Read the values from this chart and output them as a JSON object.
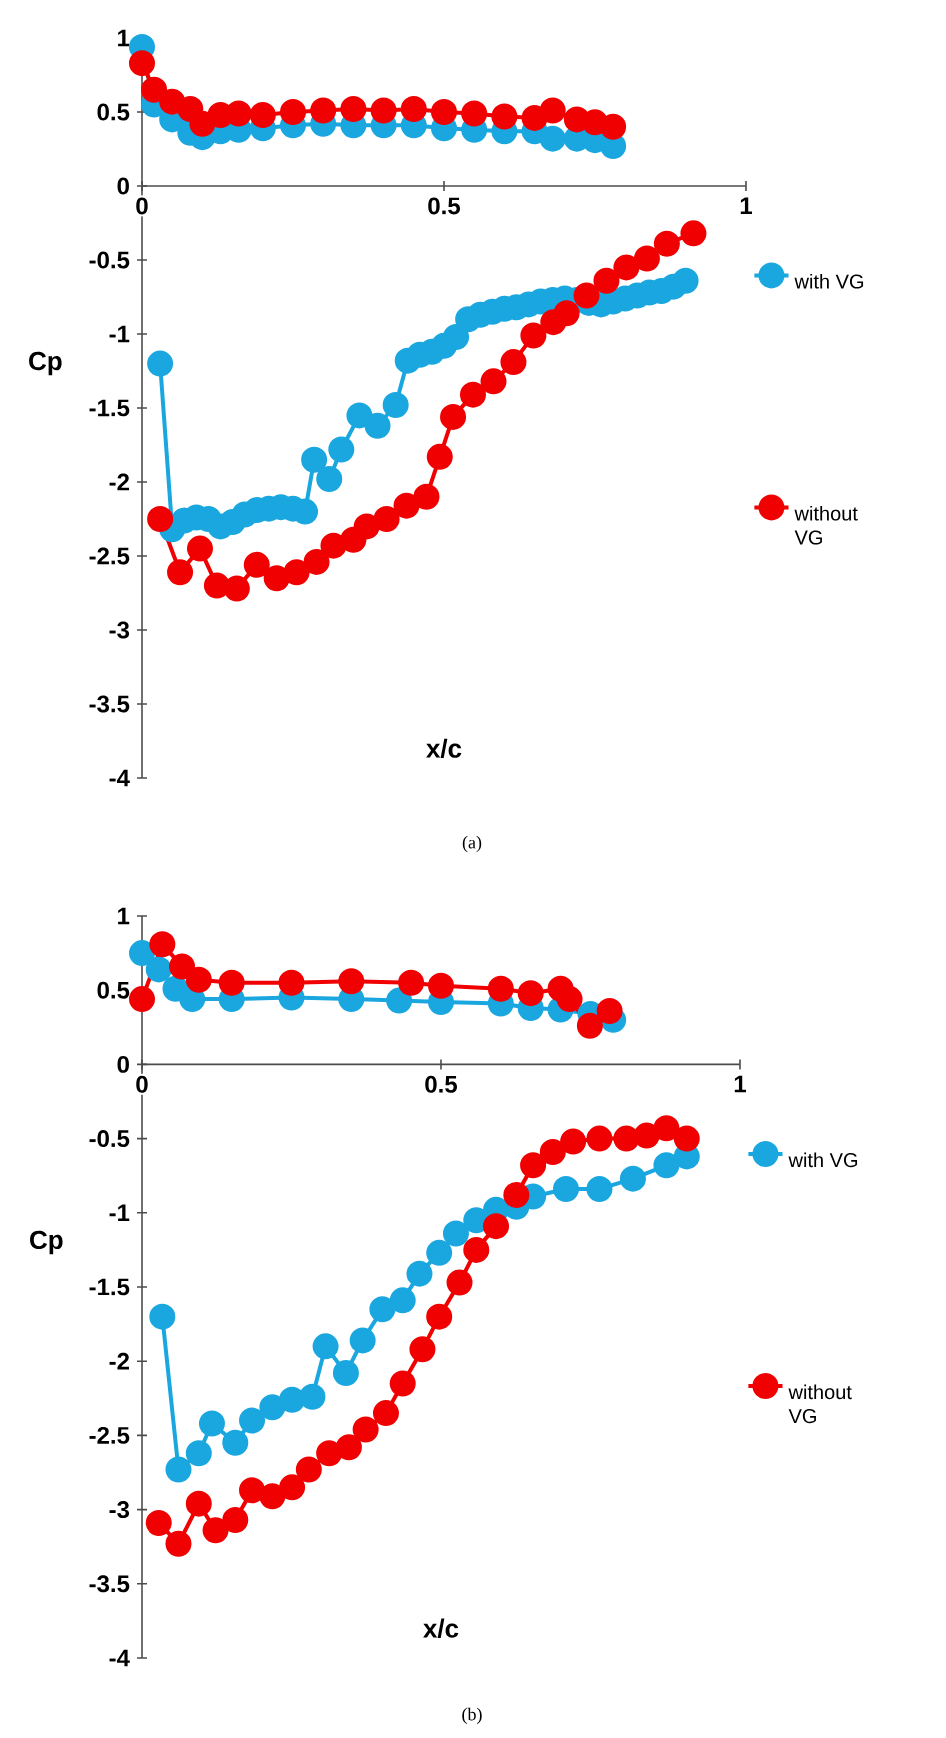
{
  "chart_data": [
    {
      "type": "line",
      "xlabel": "x/c",
      "ylabel": "Cp",
      "annotations": [
        "(a)"
      ],
      "xlim": [
        0,
        1
      ],
      "ylim": [
        -4,
        1
      ],
      "xticks": [
        0,
        0.5,
        1
      ],
      "yticks": [
        1,
        0.5,
        0,
        -0.5,
        -1,
        -1.5,
        -2,
        -2.5,
        -3,
        -3.5,
        -4
      ],
      "legend": "right",
      "marker": "circle",
      "line_style": "solid",
      "series": [
        {
          "name": "with VG",
          "color": "#1aa7e0",
          "x": [
            0,
            0.02,
            0.05,
            0.08,
            0.1,
            0.13,
            0.16,
            0.2,
            0.25,
            0.3,
            0.35,
            0.4,
            0.45,
            0.5,
            0.55,
            0.6,
            0.65,
            0.68,
            0.72,
            0.75,
            0.78,
            null,
            0.03,
            0.05,
            0.07,
            0.09,
            0.11,
            0.13,
            0.15,
            0.17,
            0.19,
            0.21,
            0.23,
            0.25,
            0.27,
            0.285,
            0.31,
            0.33,
            0.36,
            0.39,
            0.42,
            0.44,
            0.46,
            0.48,
            0.5,
            0.52,
            0.54,
            0.56,
            0.58,
            0.6,
            0.62,
            0.64,
            0.66,
            0.68,
            0.7,
            0.72,
            0.74,
            0.76,
            0.78,
            0.8,
            0.82,
            0.84,
            0.86,
            0.88,
            0.9
          ],
          "values": [
            0.94,
            0.55,
            0.45,
            0.36,
            0.33,
            0.37,
            0.38,
            0.39,
            0.41,
            0.42,
            0.41,
            0.41,
            0.41,
            0.39,
            0.38,
            0.37,
            0.37,
            0.32,
            0.32,
            0.31,
            0.27,
            null,
            -1.2,
            -2.32,
            -2.26,
            -2.24,
            -2.25,
            -2.3,
            -2.27,
            -2.22,
            -2.19,
            -2.18,
            -2.17,
            -2.18,
            -2.2,
            -1.85,
            -1.98,
            -1.78,
            -1.55,
            -1.62,
            -1.48,
            -1.18,
            -1.14,
            -1.12,
            -1.08,
            -1.02,
            -0.9,
            -0.87,
            -0.85,
            -0.83,
            -0.82,
            -0.8,
            -0.78,
            -0.77,
            -0.76,
            -0.77,
            -0.79,
            -0.8,
            -0.78,
            -0.76,
            -0.74,
            -0.72,
            -0.71,
            -0.68,
            -0.64
          ]
        },
        {
          "name": "without VG",
          "color": "#f00000",
          "x": [
            0,
            0.02,
            0.05,
            0.08,
            0.1,
            0.13,
            0.16,
            0.2,
            0.25,
            0.3,
            0.35,
            0.4,
            0.45,
            0.5,
            0.55,
            0.6,
            0.65,
            0.68,
            0.72,
            0.75,
            0.78,
            null,
            0.03,
            0.063,
            0.096,
            0.124,
            0.157,
            0.19,
            0.223,
            0.256,
            0.289,
            0.317,
            0.35,
            0.372,
            0.405,
            0.438,
            0.471,
            0.493,
            0.515,
            0.548,
            0.582,
            0.615,
            0.648,
            0.681,
            0.703,
            0.736,
            0.769,
            0.802,
            0.836,
            0.869,
            0.913
          ],
          "values": [
            0.83,
            0.65,
            0.57,
            0.52,
            0.42,
            0.48,
            0.49,
            0.48,
            0.5,
            0.51,
            0.52,
            0.51,
            0.52,
            0.5,
            0.49,
            0.47,
            0.46,
            0.51,
            0.45,
            0.43,
            0.4,
            null,
            -2.25,
            -2.61,
            -2.45,
            -2.7,
            -2.72,
            -2.56,
            -2.65,
            -2.61,
            -2.54,
            -2.43,
            -2.39,
            -2.3,
            -2.25,
            -2.16,
            -2.1,
            -1.83,
            -1.56,
            -1.41,
            -1.32,
            -1.19,
            -1.01,
            -0.92,
            -0.86,
            -0.74,
            -0.64,
            -0.55,
            -0.49,
            -0.39,
            -0.32
          ]
        }
      ]
    },
    {
      "type": "line",
      "xlabel": "x/c",
      "ylabel": "Cp",
      "annotations": [
        "(b)"
      ],
      "xlim": [
        0,
        1
      ],
      "ylim": [
        -4,
        1
      ],
      "xticks": [
        0,
        0.5,
        1
      ],
      "yticks": [
        1,
        0.5,
        0,
        -0.5,
        -1,
        -1.5,
        -2,
        -2.5,
        -3,
        -3.5,
        -4
      ],
      "legend": "right",
      "marker": "circle",
      "line_style": "solid",
      "series": [
        {
          "name": "with VG",
          "color": "#1aa7e0",
          "x": [
            0,
            0.028,
            0.056,
            0.084,
            0.15,
            0.25,
            0.35,
            0.43,
            0.5,
            0.6,
            0.65,
            0.7,
            0.75,
            0.788,
            null,
            0.034,
            0.061,
            0.095,
            0.117,
            0.156,
            0.184,
            0.218,
            0.251,
            0.285,
            0.307,
            0.341,
            0.369,
            0.402,
            0.436,
            0.464,
            0.497,
            0.525,
            0.559,
            0.592,
            0.626,
            0.654,
            0.709,
            0.765,
            0.821,
            0.877,
            0.911
          ],
          "values": [
            0.75,
            0.64,
            0.51,
            0.44,
            0.44,
            0.45,
            0.44,
            0.43,
            0.42,
            0.41,
            0.38,
            0.37,
            0.34,
            0.3,
            null,
            -1.7,
            -2.73,
            -2.62,
            -2.42,
            -2.55,
            -2.4,
            -2.31,
            -2.26,
            -2.24,
            -1.9,
            -2.08,
            -1.86,
            -1.65,
            -1.59,
            -1.41,
            -1.27,
            -1.14,
            -1.05,
            -0.98,
            -0.96,
            -0.89,
            -0.84,
            -0.84,
            -0.77,
            -0.68,
            -0.62
          ]
        },
        {
          "name": "without VG",
          "color": "#f00000",
          "x": [
            0,
            0.034,
            0.067,
            0.095,
            0.15,
            0.25,
            0.35,
            0.45,
            0.5,
            0.6,
            0.65,
            0.7,
            0.715,
            0.749,
            0.782,
            null,
            0.028,
            0.061,
            0.095,
            0.123,
            0.156,
            0.184,
            0.218,
            0.251,
            0.279,
            0.313,
            0.346,
            0.374,
            0.408,
            0.436,
            0.469,
            0.497,
            0.531,
            0.559,
            0.592,
            0.626,
            0.654,
            0.687,
            0.721,
            0.765,
            0.81,
            0.844,
            0.877,
            0.911
          ],
          "values": [
            0.44,
            0.81,
            0.66,
            0.57,
            0.55,
            0.55,
            0.56,
            0.55,
            0.53,
            0.51,
            0.48,
            0.51,
            0.44,
            0.26,
            0.36,
            null,
            -3.09,
            -3.23,
            -2.96,
            -3.14,
            -3.07,
            -2.87,
            -2.91,
            -2.85,
            -2.73,
            -2.62,
            -2.58,
            -2.46,
            -2.35,
            -2.15,
            -1.92,
            -1.7,
            -1.47,
            -1.25,
            -1.09,
            -0.88,
            -0.68,
            -0.59,
            -0.52,
            -0.5,
            -0.5,
            -0.48,
            -0.43,
            -0.5
          ]
        }
      ]
    }
  ]
}
